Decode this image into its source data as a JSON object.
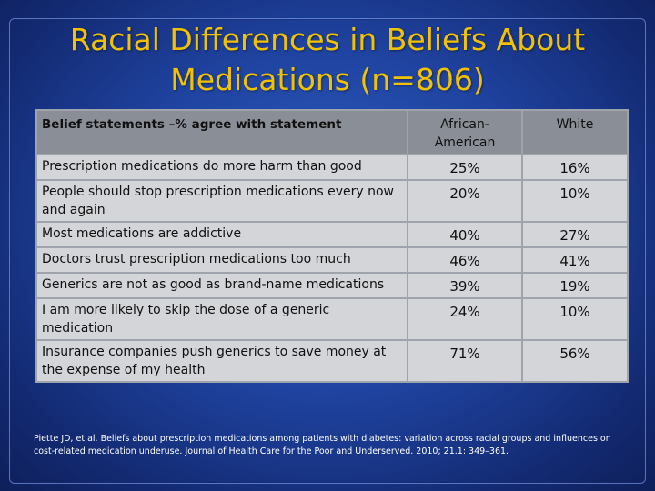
{
  "slide": {
    "title_line1": "Racial Differences in Beliefs About",
    "title_line2": "Medications (n=806)"
  },
  "table": {
    "headers": {
      "statement": "Belief statements –% agree  with statement",
      "african_american": "African-American",
      "white": "White"
    },
    "rows": [
      {
        "statement": "Prescription medications do more harm than good",
        "african_american": "25%",
        "white": "16%"
      },
      {
        "statement": "People should stop prescription medications every now and again",
        "african_american": "20%",
        "white": "10%"
      },
      {
        "statement": "Most medications are addictive",
        "african_american": "40%",
        "white": "27%"
      },
      {
        "statement": "Doctors trust prescription medications too much",
        "african_american": "46%",
        "white": "41%"
      },
      {
        "statement": "Generics are not as good as brand-name medications",
        "african_american": "39%",
        "white": "19%"
      },
      {
        "statement": "I am more likely to skip the dose of a generic medication",
        "african_american": "24%",
        "white": "10%"
      },
      {
        "statement": "Insurance companies push generics to save money at the expense of my health",
        "african_american": "71%",
        "white": "56%"
      }
    ]
  },
  "citation": "Piette JD, et al. Beliefs about prescription medications among patients with diabetes: variation across racial groups and influences on cost-related medication underuse. Journal of Health Care for the Poor and Underserved. 2010; 21.1: 349–361."
}
